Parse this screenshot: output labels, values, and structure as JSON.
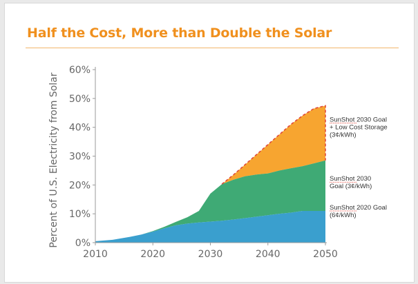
{
  "slide": {
    "title": "Half the Cost, More than Double the Solar"
  },
  "chart_data": {
    "type": "area",
    "title": "",
    "xlabel": "",
    "ylabel": "Percent of U.S. Electricity from Solar",
    "xlim": [
      2010,
      2050
    ],
    "ylim": [
      0,
      60
    ],
    "x_ticks": [
      "2010",
      "2020",
      "2030",
      "2040",
      "2050"
    ],
    "y_ticks": [
      "0%",
      "10%",
      "20%",
      "30%",
      "40%",
      "50%",
      "60%"
    ],
    "stacking": "cumulative",
    "x": [
      2010,
      2013,
      2016,
      2018,
      2020,
      2022,
      2024,
      2026,
      2028,
      2030,
      2032,
      2034,
      2036,
      2038,
      2040,
      2042,
      2044,
      2046,
      2048,
      2050
    ],
    "series": [
      {
        "name_lines": [
          "SunShot 2020 Goal",
          "(6¢/kWh)"
        ],
        "color": "#3a9fce",
        "values": [
          0.5,
          1,
          2,
          2.8,
          3.8,
          5,
          6,
          6.6,
          7,
          7.3,
          7.6,
          8,
          8.5,
          9,
          9.5,
          10,
          10.4,
          11,
          11,
          11
        ]
      },
      {
        "name_lines": [
          "SunShot 2030",
          "Goal (3¢/kWh)"
        ],
        "color": "#3faa75",
        "cumulative": [
          0.5,
          1,
          2,
          2.8,
          4,
          5.5,
          7.2,
          8.8,
          11,
          17,
          20.3,
          21.8,
          23,
          23.6,
          24,
          25,
          25.8,
          26.5,
          27.5,
          28.5
        ]
      },
      {
        "name_lines": [
          "SunShot 2030 Goal",
          "+ Low Cost Storage",
          "(3¢/kWh)"
        ],
        "color": "#f7a530",
        "border_color": "#e0483a",
        "border_style": "dashed",
        "cumulative": [
          0.5,
          1,
          2,
          2.8,
          4,
          5.5,
          7.2,
          8.8,
          11,
          17,
          20.3,
          23.5,
          27,
          30.5,
          34,
          37.5,
          41,
          44,
          46.5,
          47.5
        ]
      }
    ],
    "axis_color": "#9a9a9a",
    "tick_color": "#666666",
    "grid": false,
    "legend": "right, inline labels"
  }
}
